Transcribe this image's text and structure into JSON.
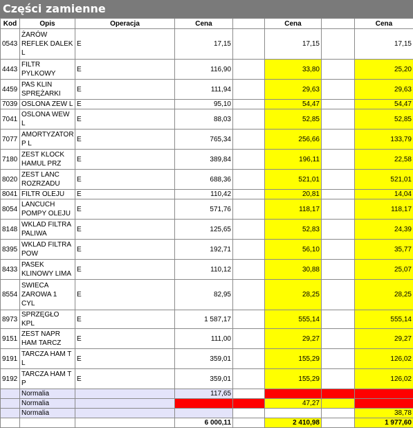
{
  "title": "Części zamienne",
  "headers": [
    "Kod",
    "Opis",
    "Operacja",
    "Cena",
    "",
    "Cena",
    "",
    "Cena"
  ],
  "rows": [
    {
      "kod": "0543",
      "opis": "ŻARÓW\nREFLEK DALEK\nL",
      "op": "E",
      "c1": "17,15",
      "c2": "17,15",
      "c3": "17,15",
      "y2": false,
      "y3": false
    },
    {
      "kod": "4443",
      "opis": "FILTR\nPYLKOWY",
      "op": "E",
      "c1": "116,90",
      "c2": "33,80",
      "c3": "25,20",
      "y2": true,
      "y3": true
    },
    {
      "kod": "4459",
      "opis": "PAS KLIN\nSPRĘŻARKI",
      "op": "E",
      "c1": "111,94",
      "c2": "29,63",
      "c3": "29,63",
      "y2": true,
      "y3": true
    },
    {
      "kod": "7039",
      "opis": "OSLONA ZEW L",
      "op": "E",
      "c1": "95,10",
      "c2": "54,47",
      "c3": "54,47",
      "y2": true,
      "y3": true
    },
    {
      "kod": "7041",
      "opis": "OSLONA WEW\nL",
      "op": "E",
      "c1": "88,03",
      "c2": "52,85",
      "c3": "52,85",
      "y2": true,
      "y3": true
    },
    {
      "kod": "7077",
      "opis": "AMORTYZATOR\nP L",
      "op": "E",
      "c1": "765,34",
      "c2": "256,66",
      "c3": "133,79",
      "y2": true,
      "y3": true
    },
    {
      "kod": "7180",
      "opis": "ZEST KLOCK\nHAMUL PRZ",
      "op": "E",
      "c1": "389,84",
      "c2": "196,11",
      "c3": "22,58",
      "y2": true,
      "y3": true
    },
    {
      "kod": "8020",
      "opis": "ZEST LANC\nROZRZADU",
      "op": "E",
      "c1": "688,36",
      "c2": "521,01",
      "c3": "521,01",
      "y2": true,
      "y3": true
    },
    {
      "kod": "8041",
      "opis": "FILTR OLEJU",
      "op": "E",
      "c1": "110,42",
      "c2": "20,81",
      "c3": "14,04",
      "y2": true,
      "y3": true
    },
    {
      "kod": "8054",
      "opis": "LANCUCH\nPOMPY OLEJU",
      "op": "E",
      "c1": "571,76",
      "c2": "118,17",
      "c3": "118,17",
      "y2": true,
      "y3": true
    },
    {
      "kod": "8148",
      "opis": "WKLAD FILTRA\nPALIWA",
      "op": "E",
      "c1": "125,65",
      "c2": "52,83",
      "c3": "24,39",
      "y2": true,
      "y3": true
    },
    {
      "kod": "8395",
      "opis": "WKLAD FILTRA\nPOW",
      "op": "E",
      "c1": "192,71",
      "c2": "56,10",
      "c3": "35,77",
      "y2": true,
      "y3": true
    },
    {
      "kod": "8433",
      "opis": "PASEK\nKLINOWY LIMA",
      "op": "E",
      "c1": "110,12",
      "c2": "30,88",
      "c3": "25,07",
      "y2": true,
      "y3": true
    },
    {
      "kod": "8554",
      "opis": "SWIECA\nZAROWA 1\nCYL",
      "op": "E",
      "c1": "82,95",
      "c2": "28,25",
      "c3": "28,25",
      "y2": true,
      "y3": true
    },
    {
      "kod": "8973",
      "opis": "SPRZĘGŁO KPL",
      "op": "E",
      "c1": "1 587,17",
      "c2": "555,14",
      "c3": "555,14",
      "y2": true,
      "y3": true
    },
    {
      "kod": "9151",
      "opis": "ZEST NAPR\nHAM TARCZ",
      "op": "E",
      "c1": "111,00",
      "c2": "29,27",
      "c3": "29,27",
      "y2": true,
      "y3": true
    },
    {
      "kod": "9191",
      "opis": "TARCZA HAM T\nL",
      "op": "E",
      "c1": "359,01",
      "c2": "155,29",
      "c3": "126,02",
      "y2": true,
      "y3": true
    },
    {
      "kod": "9192",
      "opis": "TARCZA HAM T\nP",
      "op": "E",
      "c1": "359,01",
      "c2": "155,29",
      "c3": "126,02",
      "y2": true,
      "y3": true
    }
  ],
  "normalia": [
    {
      "label": "Normalia",
      "c1": "117,65",
      "c2": "",
      "c3": ""
    },
    {
      "label": "Normalia",
      "c1": "",
      "c2": "47,27",
      "c3": ""
    },
    {
      "label": "Normalia",
      "c1": "",
      "c2": "",
      "c3": "38,78"
    }
  ],
  "totals": {
    "c1": "6 000,11",
    "c2": "2 410,98",
    "c3": "1 977,60"
  },
  "colors": {
    "highlight": "#ffff00",
    "alert": "#ff0000",
    "normalia_bg": "#e4e4fa",
    "title_bg": "#7a7a7a"
  }
}
